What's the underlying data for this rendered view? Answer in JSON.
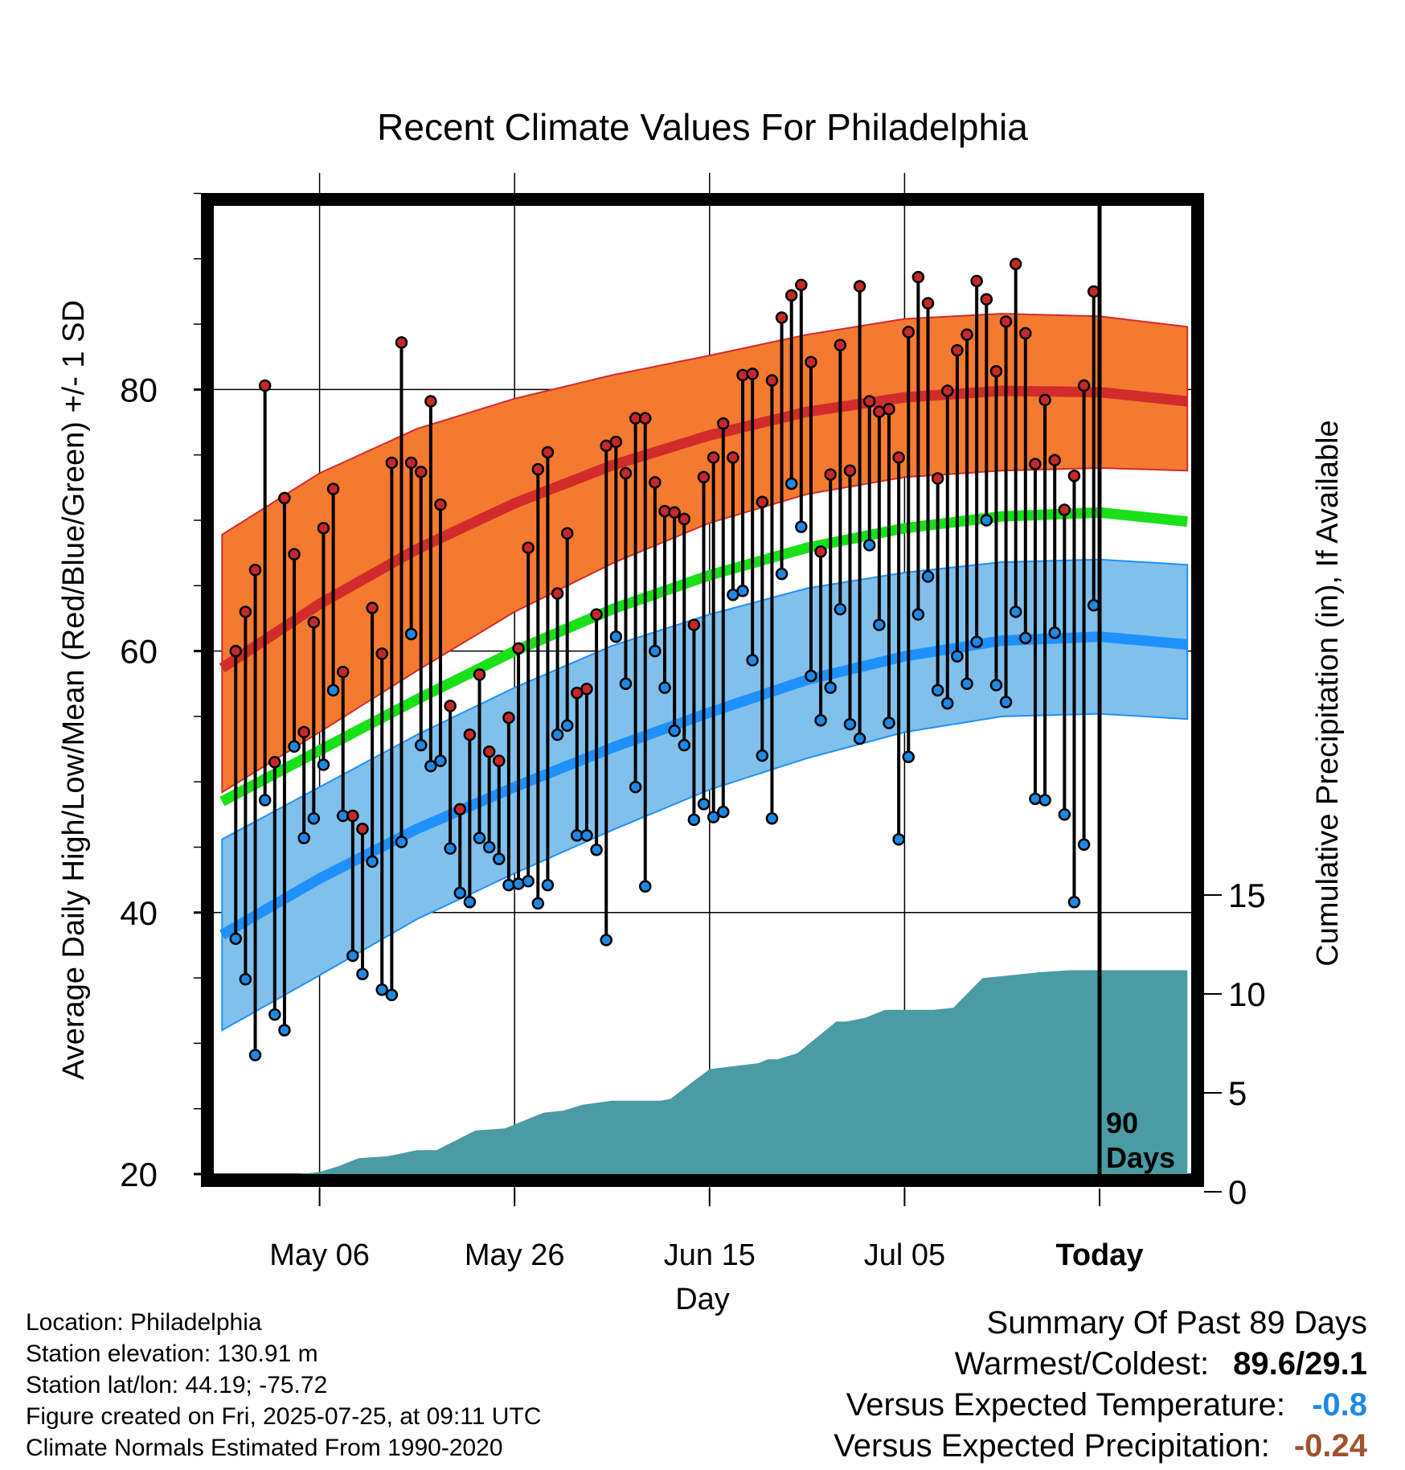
{
  "chart_data": {
    "type": "line",
    "title": "Recent Climate Values For Philadelphia",
    "xlabel": "Day",
    "ylabel": "Average Daily High/Low/Mean (Red/Blue/Green) +/- 1 SD",
    "y2label": "Cumulative Precipitation (in), If Available",
    "ylim": [
      19,
      96
    ],
    "y2lim": [
      0,
      38
    ],
    "yticks": [
      20,
      40,
      60,
      80
    ],
    "y2ticks": [
      0,
      5,
      10,
      15
    ],
    "xlim": [
      -94,
      9
    ],
    "xticks": [
      {
        "day": -80,
        "label": "May 06"
      },
      {
        "day": -60,
        "label": "May 26"
      },
      {
        "day": -40,
        "label": "Jun 15"
      },
      {
        "day": -20,
        "label": "Jul 05"
      },
      {
        "day": 0,
        "label": "Today"
      }
    ],
    "today_label": [
      "90",
      "Days"
    ],
    "grid": true,
    "colors": {
      "high_band": "#f47a30",
      "high_mean": "#d12b2b",
      "mean_line": "#19e019",
      "low_band": "#80c0ea",
      "low_mean": "#1e90ff",
      "precip": "#4a9ba3",
      "high_point": "#c62828",
      "low_point": "#1e88e5"
    },
    "normals": {
      "days": [
        -90,
        -80,
        -70,
        -60,
        -50,
        -40,
        -30,
        -20,
        -10,
        0,
        9
      ],
      "high_mean": [
        58.7,
        63.6,
        67.8,
        71.3,
        74.2,
        76.5,
        78.3,
        79.4,
        79.9,
        79.8,
        79.1
      ],
      "high_upper": [
        68.9,
        73.6,
        77.0,
        79.3,
        81.1,
        82.6,
        84.2,
        85.4,
        85.8,
        85.6,
        84.8
      ],
      "high_lower": [
        49.2,
        53.8,
        58.5,
        63.0,
        66.7,
        69.8,
        72.0,
        73.3,
        73.8,
        74.0,
        73.8
      ],
      "mean": [
        48.5,
        52.4,
        56.3,
        60.0,
        63.2,
        65.8,
        67.9,
        69.4,
        70.3,
        70.6,
        69.9
      ],
      "low_mean": [
        38.3,
        42.6,
        46.4,
        49.6,
        52.6,
        55.3,
        57.8,
        59.6,
        60.8,
        61.1,
        60.5
      ],
      "low_upper": [
        45.6,
        49.6,
        53.6,
        57.2,
        60.4,
        62.8,
        64.8,
        66.0,
        66.8,
        67.0,
        66.6
      ],
      "low_lower": [
        31.0,
        35.2,
        39.5,
        43.0,
        46.3,
        49.4,
        51.8,
        53.8,
        55.0,
        55.2,
        54.8
      ]
    },
    "precip_cumulative": {
      "days": [
        -90,
        -87,
        -84,
        -82,
        -80,
        -78,
        -76,
        -73,
        -70,
        -68,
        -66,
        -64,
        -61,
        -59,
        -57,
        -55,
        -53,
        -50,
        -47,
        -45,
        -44,
        -40,
        -35,
        -34,
        -33,
        -31,
        -27,
        -26,
        -25,
        -24,
        -22,
        -18,
        -17,
        -15,
        -12,
        -10,
        -6,
        -3,
        0,
        9
      ],
      "values": [
        0.2,
        0.4,
        0.5,
        0.9,
        1.0,
        1.3,
        1.7,
        1.8,
        2.1,
        2.1,
        2.6,
        3.1,
        3.2,
        3.6,
        4.0,
        4.1,
        4.4,
        4.6,
        4.6,
        4.6,
        4.7,
        6.2,
        6.5,
        6.7,
        6.7,
        7.0,
        8.6,
        8.6,
        8.7,
        8.8,
        9.2,
        9.2,
        9.2,
        9.3,
        10.8,
        10.9,
        11.1,
        11.2,
        11.2,
        11.2
      ]
    },
    "series": [
      {
        "name": "High",
        "values": [
          60.0,
          63.0,
          66.2,
          80.3,
          51.5,
          71.7,
          67.4,
          53.8,
          62.2,
          69.4,
          72.4,
          58.4,
          47.4,
          46.4,
          63.3,
          59.8,
          74.4,
          83.6,
          74.4,
          73.7,
          79.1,
          71.2,
          55.8,
          47.9,
          53.6,
          58.2,
          52.3,
          51.6,
          54.9,
          60.2,
          67.9,
          73.9,
          75.2,
          64.4,
          69.0,
          56.8,
          57.1,
          62.8,
          75.7,
          76.0,
          73.6,
          77.8,
          77.8,
          72.9,
          70.7,
          70.6,
          70.1,
          62.0,
          73.3,
          74.8,
          77.4,
          74.8,
          81.1,
          81.2,
          71.4,
          80.7,
          85.5,
          87.2,
          88.0,
          82.1,
          67.6,
          73.5,
          83.4,
          73.8,
          87.9,
          79.1,
          78.3,
          78.5,
          74.8,
          84.4,
          88.6,
          86.6,
          73.2,
          79.9,
          83.0,
          84.2,
          88.3,
          86.9,
          81.4,
          85.2,
          89.6,
          84.3,
          74.3,
          79.2,
          74.6,
          70.8,
          73.4,
          80.3,
          87.5
        ]
      },
      {
        "name": "Low",
        "values": [
          38.0,
          34.9,
          29.1,
          48.6,
          32.2,
          31.0,
          52.7,
          45.7,
          47.2,
          51.3,
          57.0,
          47.4,
          36.7,
          35.3,
          43.9,
          34.1,
          33.7,
          45.4,
          61.3,
          52.8,
          51.2,
          51.6,
          44.9,
          41.5,
          40.8,
          45.7,
          45.0,
          44.1,
          42.1,
          42.2,
          42.4,
          40.7,
          42.1,
          53.6,
          54.3,
          45.9,
          45.9,
          44.8,
          37.9,
          61.1,
          57.5,
          49.6,
          42.0,
          60.0,
          57.2,
          53.9,
          52.8,
          47.1,
          48.3,
          47.3,
          47.7,
          64.3,
          64.6,
          59.3,
          52.0,
          47.2,
          65.9,
          72.8,
          69.5,
          58.1,
          54.7,
          57.2,
          63.2,
          54.4,
          53.3,
          68.1,
          62.0,
          54.5,
          45.6,
          51.9,
          62.8,
          65.7,
          57.0,
          56.0,
          59.6,
          57.5,
          60.7,
          70.0,
          57.4,
          56.1,
          63.0,
          61.0,
          48.7,
          48.6,
          61.4,
          47.5,
          40.8,
          45.2,
          63.5
        ]
      }
    ]
  },
  "footer": {
    "lines": [
      "Location: Philadelphia",
      "Station elevation: 130.91 m",
      "Station lat/lon: 44.19; -75.72",
      "Figure created on Fri, 2025-07-25, at 09:11 UTC",
      "Climate Normals Estimated From 1990-2020"
    ]
  },
  "summary": {
    "title": "Summary Of Past 89 Days",
    "warmest_label": "Warmest/Coldest:",
    "warmest_value": "89.6/29.1",
    "temp_label": "Versus Expected Temperature:",
    "temp_value": "-0.8",
    "precip_label": "Versus Expected Precipitation:",
    "precip_value": "-0.24"
  }
}
